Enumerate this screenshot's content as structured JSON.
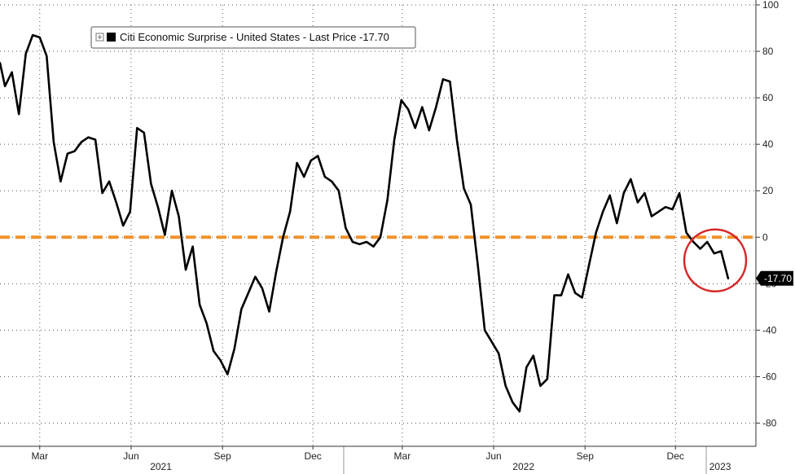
{
  "chart_data": {
    "type": "line",
    "legend": {
      "label": "Citi Economic Surprise - United States - Last Price -17.70",
      "placement": "top-left"
    },
    "last_price_label": "-17.70",
    "y_axis": {
      "position": "right",
      "ylim": [
        -90,
        100
      ],
      "ticks": [
        100,
        80,
        60,
        40,
        20,
        0,
        -20,
        -40,
        -60,
        -80
      ],
      "tick_labels": [
        "100",
        "80",
        "60",
        "40",
        "20",
        "0",
        "-20",
        "-40",
        "-60",
        "-80"
      ]
    },
    "x_axis": {
      "month_labels": [
        {
          "label": "Mar",
          "date": "2021-03-01"
        },
        {
          "label": "Jun",
          "date": "2021-06-01"
        },
        {
          "label": "Sep",
          "date": "2021-09-01"
        },
        {
          "label": "Dec",
          "date": "2021-12-01"
        },
        {
          "label": "Mar",
          "date": "2022-03-01"
        },
        {
          "label": "Jun",
          "date": "2022-06-01"
        },
        {
          "label": "Sep",
          "date": "2022-09-01"
        },
        {
          "label": "Dec",
          "date": "2022-12-01"
        }
      ],
      "year_labels": [
        {
          "label": "2021",
          "date": "2021-07-01"
        },
        {
          "label": "2022",
          "date": "2022-07-01"
        },
        {
          "label": "2023",
          "date": "2023-01-15"
        }
      ],
      "year_dividers": [
        "2022-01-01",
        "2023-01-01"
      ],
      "start": "2021-01-20",
      "end": "2023-02-20"
    },
    "grid": true,
    "reference_line": {
      "y": 0,
      "style": "dashed",
      "color": "#f0922b"
    },
    "highlight": {
      "date": "2023-01-10",
      "y": -10,
      "color": "#d62728",
      "shape": "circle"
    },
    "line_color": "#000000",
    "series": [
      {
        "points": [
          [
            "2021-01-20",
            75
          ],
          [
            "2021-01-25",
            65
          ],
          [
            "2021-02-01",
            71
          ],
          [
            "2021-02-08",
            53
          ],
          [
            "2021-02-15",
            79
          ],
          [
            "2021-02-22",
            87
          ],
          [
            "2021-03-01",
            86
          ],
          [
            "2021-03-08",
            78
          ],
          [
            "2021-03-15",
            41
          ],
          [
            "2021-03-22",
            24
          ],
          [
            "2021-03-29",
            36
          ],
          [
            "2021-04-05",
            37
          ],
          [
            "2021-04-12",
            41
          ],
          [
            "2021-04-19",
            43
          ],
          [
            "2021-04-26",
            42
          ],
          [
            "2021-05-03",
            19
          ],
          [
            "2021-05-10",
            24
          ],
          [
            "2021-05-17",
            15
          ],
          [
            "2021-05-24",
            5
          ],
          [
            "2021-05-31",
            11
          ],
          [
            "2021-06-07",
            47
          ],
          [
            "2021-06-14",
            45
          ],
          [
            "2021-06-21",
            23
          ],
          [
            "2021-06-28",
            13
          ],
          [
            "2021-07-05",
            1
          ],
          [
            "2021-07-12",
            20
          ],
          [
            "2021-07-19",
            9
          ],
          [
            "2021-07-26",
            -14
          ],
          [
            "2021-08-02",
            -4
          ],
          [
            "2021-08-09",
            -29
          ],
          [
            "2021-08-16",
            -37
          ],
          [
            "2021-08-23",
            -49
          ],
          [
            "2021-08-30",
            -53
          ],
          [
            "2021-09-06",
            -59
          ],
          [
            "2021-09-13",
            -48
          ],
          [
            "2021-09-20",
            -31
          ],
          [
            "2021-09-27",
            -24
          ],
          [
            "2021-10-04",
            -17
          ],
          [
            "2021-10-11",
            -22
          ],
          [
            "2021-10-18",
            -32
          ],
          [
            "2021-10-25",
            -15
          ],
          [
            "2021-11-01",
            0
          ],
          [
            "2021-11-08",
            11
          ],
          [
            "2021-11-15",
            32
          ],
          [
            "2021-11-22",
            26
          ],
          [
            "2021-11-29",
            33
          ],
          [
            "2021-12-06",
            35
          ],
          [
            "2021-12-13",
            26
          ],
          [
            "2021-12-20",
            24
          ],
          [
            "2021-12-27",
            20
          ],
          [
            "2022-01-03",
            4
          ],
          [
            "2022-01-10",
            -2
          ],
          [
            "2022-01-17",
            -3
          ],
          [
            "2022-01-24",
            -2
          ],
          [
            "2022-01-31",
            -4
          ],
          [
            "2022-02-07",
            0
          ],
          [
            "2022-02-14",
            16
          ],
          [
            "2022-02-21",
            42
          ],
          [
            "2022-02-28",
            59
          ],
          [
            "2022-03-07",
            55
          ],
          [
            "2022-03-14",
            47
          ],
          [
            "2022-03-21",
            56
          ],
          [
            "2022-03-28",
            46
          ],
          [
            "2022-04-04",
            56
          ],
          [
            "2022-04-11",
            68
          ],
          [
            "2022-04-18",
            67
          ],
          [
            "2022-04-25",
            42
          ],
          [
            "2022-05-02",
            21
          ],
          [
            "2022-05-09",
            14
          ],
          [
            "2022-05-16",
            -12
          ],
          [
            "2022-05-23",
            -40
          ],
          [
            "2022-05-30",
            -45
          ],
          [
            "2022-06-06",
            -50
          ],
          [
            "2022-06-13",
            -64
          ],
          [
            "2022-06-20",
            -71
          ],
          [
            "2022-06-27",
            -75
          ],
          [
            "2022-07-04",
            -56
          ],
          [
            "2022-07-11",
            -51
          ],
          [
            "2022-07-18",
            -64
          ],
          [
            "2022-07-25",
            -61
          ],
          [
            "2022-08-01",
            -25
          ],
          [
            "2022-08-08",
            -25
          ],
          [
            "2022-08-15",
            -16
          ],
          [
            "2022-08-22",
            -24
          ],
          [
            "2022-08-29",
            -26
          ],
          [
            "2022-09-05",
            -12
          ],
          [
            "2022-09-12",
            2
          ],
          [
            "2022-09-19",
            11
          ],
          [
            "2022-09-26",
            18
          ],
          [
            "2022-10-03",
            6
          ],
          [
            "2022-10-10",
            19
          ],
          [
            "2022-10-17",
            25
          ],
          [
            "2022-10-24",
            15
          ],
          [
            "2022-10-31",
            19
          ],
          [
            "2022-11-07",
            9
          ],
          [
            "2022-11-14",
            11
          ],
          [
            "2022-11-21",
            13
          ],
          [
            "2022-11-28",
            12
          ],
          [
            "2022-12-05",
            19
          ],
          [
            "2022-12-12",
            2
          ],
          [
            "2022-12-19",
            -2
          ],
          [
            "2022-12-26",
            -5
          ],
          [
            "2023-01-02",
            -2
          ],
          [
            "2023-01-09",
            -7
          ],
          [
            "2023-01-16",
            -6
          ],
          [
            "2023-01-23",
            -17.7
          ]
        ]
      }
    ]
  }
}
